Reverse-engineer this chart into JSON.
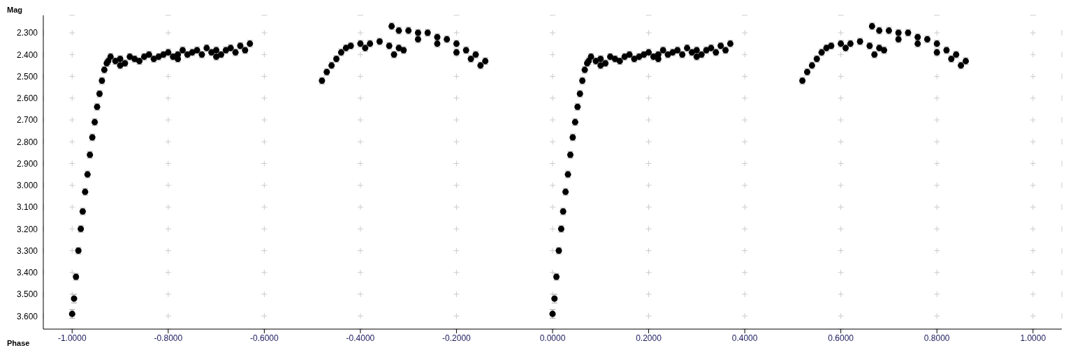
{
  "chart_data": {
    "type": "scatter",
    "xlabel": "Phase",
    "ylabel": "Mag",
    "xlim": [
      -1.06,
      1.06
    ],
    "ylim": [
      3.66,
      2.22
    ],
    "xticks": [
      {
        "value": -1,
        "label": "-1.0000"
      },
      {
        "value": -0.8,
        "label": "-0.8000"
      },
      {
        "value": -0.6,
        "label": "-0.6000"
      },
      {
        "value": -0.4,
        "label": "-0.4000"
      },
      {
        "value": -0.2,
        "label": "-0.2000"
      },
      {
        "value": 0,
        "label": "0.0000"
      },
      {
        "value": 0.2,
        "label": "0.2000"
      },
      {
        "value": 0.4,
        "label": "0.4000"
      },
      {
        "value": 0.6,
        "label": "0.6000"
      },
      {
        "value": 0.8,
        "label": "0.8000"
      },
      {
        "value": 1,
        "label": "1.0000"
      }
    ],
    "yticks": [
      {
        "value": 2.3,
        "label": "2.300"
      },
      {
        "value": 2.4,
        "label": "2.400"
      },
      {
        "value": 2.5,
        "label": "2.500"
      },
      {
        "value": 2.6,
        "label": "2.600"
      },
      {
        "value": 2.7,
        "label": "2.700"
      },
      {
        "value": 2.8,
        "label": "2.800"
      },
      {
        "value": 2.9,
        "label": "2.900"
      },
      {
        "value": 3.0,
        "label": "3.000"
      },
      {
        "value": 3.1,
        "label": "3.100"
      },
      {
        "value": 3.2,
        "label": "3.200"
      },
      {
        "value": 3.3,
        "label": "3.300"
      },
      {
        "value": 3.4,
        "label": "3.400"
      },
      {
        "value": 3.5,
        "label": "3.500"
      },
      {
        "value": 3.6,
        "label": "3.600"
      }
    ],
    "grid": true,
    "marker": "circle",
    "series": [
      {
        "color": "#000000",
        "x": [
          -1,
          -0.996,
          -0.992,
          -0.987,
          -0.982,
          -0.978,
          -0.973,
          -0.968,
          -0.963,
          -0.958,
          -0.953,
          -0.948,
          -0.943,
          -0.938,
          -0.933,
          -0.928,
          -0.925,
          -0.92,
          -0.91,
          -0.9,
          -0.9,
          -0.89,
          -0.88,
          -0.87,
          -0.86,
          -0.85,
          -0.84,
          -0.83,
          -0.82,
          -0.81,
          -0.8,
          -0.79,
          -0.78,
          -0.78,
          -0.77,
          -0.76,
          -0.75,
          -0.74,
          -0.73,
          -0.72,
          -0.71,
          -0.7,
          -0.7,
          -0.69,
          -0.68,
          -0.67,
          -0.66,
          -0.65,
          -0.64,
          -0.63,
          -0.48,
          -0.47,
          -0.46,
          -0.45,
          -0.44,
          -0.43,
          -0.42,
          -0.4,
          -0.39,
          -0.38,
          -0.36,
          -0.34,
          -0.33,
          -0.32,
          -0.31,
          -0.335,
          -0.32,
          -0.3,
          -0.28,
          -0.28,
          -0.26,
          -0.24,
          -0.24,
          -0.22,
          -0.2,
          -0.2,
          -0.18,
          -0.17,
          -0.16,
          -0.15,
          -0.14
        ],
        "values": [
          3.59,
          3.52,
          3.42,
          3.3,
          3.2,
          3.12,
          3.03,
          2.95,
          2.86,
          2.78,
          2.71,
          2.64,
          2.58,
          2.52,
          2.47,
          2.44,
          2.43,
          2.41,
          2.43,
          2.42,
          2.45,
          2.44,
          2.41,
          2.42,
          2.43,
          2.41,
          2.4,
          2.42,
          2.41,
          2.4,
          2.39,
          2.41,
          2.4,
          2.42,
          2.38,
          2.4,
          2.39,
          2.38,
          2.4,
          2.37,
          2.39,
          2.38,
          2.41,
          2.4,
          2.38,
          2.37,
          2.39,
          2.36,
          2.38,
          2.35,
          2.52,
          2.48,
          2.45,
          2.42,
          2.39,
          2.37,
          2.36,
          2.35,
          2.37,
          2.35,
          2.34,
          2.36,
          2.4,
          2.37,
          2.38,
          2.27,
          2.29,
          2.29,
          2.3,
          2.33,
          2.3,
          2.32,
          2.35,
          2.33,
          2.35,
          2.39,
          2.38,
          2.42,
          2.4,
          2.45,
          2.43
        ],
        "errors": [
          0.02,
          0.02,
          0.015,
          0.015,
          0.015,
          0.015,
          0.015,
          0.015,
          0.015,
          0.015,
          0.015,
          0.015,
          0.015,
          0.015,
          0.015,
          0.015,
          0.015,
          0.015,
          0.015,
          0.015,
          0.015,
          0.015,
          0.015,
          0.015,
          0.015,
          0.015,
          0.015,
          0.015,
          0.015,
          0.015,
          0.015,
          0.015,
          0.015,
          0.015,
          0.015,
          0.015,
          0.015,
          0.015,
          0.015,
          0.015,
          0.015,
          0.015,
          0.015,
          0.015,
          0.015,
          0.015,
          0.015,
          0.015,
          0.015,
          0.015,
          0.015,
          0.015,
          0.015,
          0.015,
          0.015,
          0.015,
          0.015,
          0.015,
          0.015,
          0.015,
          0.015,
          0.015,
          0.015,
          0.015,
          0.015,
          0.015,
          0.015,
          0.015,
          0.015,
          0.015,
          0.015,
          0.015,
          0.015,
          0.015,
          0.015,
          0.015,
          0.015,
          0.015,
          0.015,
          0.015,
          0.015
        ]
      },
      {
        "color": "#000000",
        "x": [
          0,
          0.004,
          0.008,
          0.013,
          0.018,
          0.022,
          0.027,
          0.032,
          0.037,
          0.042,
          0.047,
          0.052,
          0.057,
          0.062,
          0.067,
          0.072,
          0.075,
          0.08,
          0.09,
          0.1,
          0.1,
          0.11,
          0.12,
          0.13,
          0.14,
          0.15,
          0.16,
          0.17,
          0.18,
          0.19,
          0.2,
          0.21,
          0.22,
          0.22,
          0.23,
          0.24,
          0.25,
          0.26,
          0.27,
          0.28,
          0.29,
          0.3,
          0.3,
          0.31,
          0.32,
          0.33,
          0.34,
          0.35,
          0.36,
          0.37,
          0.52,
          0.53,
          0.54,
          0.55,
          0.56,
          0.57,
          0.58,
          0.6,
          0.61,
          0.62,
          0.64,
          0.66,
          0.67,
          0.68,
          0.69,
          0.665,
          0.68,
          0.7,
          0.72,
          0.72,
          0.74,
          0.76,
          0.76,
          0.78,
          0.8,
          0.8,
          0.82,
          0.83,
          0.84,
          0.85,
          0.86
        ],
        "values": [
          3.59,
          3.52,
          3.42,
          3.3,
          3.2,
          3.12,
          3.03,
          2.95,
          2.86,
          2.78,
          2.71,
          2.64,
          2.58,
          2.52,
          2.47,
          2.44,
          2.43,
          2.41,
          2.43,
          2.42,
          2.45,
          2.44,
          2.41,
          2.42,
          2.43,
          2.41,
          2.4,
          2.42,
          2.41,
          2.4,
          2.39,
          2.41,
          2.4,
          2.42,
          2.38,
          2.4,
          2.39,
          2.38,
          2.4,
          2.37,
          2.39,
          2.38,
          2.41,
          2.4,
          2.38,
          2.37,
          2.39,
          2.36,
          2.38,
          2.35,
          2.52,
          2.48,
          2.45,
          2.42,
          2.39,
          2.37,
          2.36,
          2.35,
          2.37,
          2.35,
          2.34,
          2.36,
          2.4,
          2.37,
          2.38,
          2.27,
          2.29,
          2.29,
          2.3,
          2.33,
          2.3,
          2.32,
          2.35,
          2.33,
          2.35,
          2.39,
          2.38,
          2.42,
          2.4,
          2.45,
          2.43
        ],
        "errors": [
          0.02,
          0.02,
          0.015,
          0.015,
          0.015,
          0.015,
          0.015,
          0.015,
          0.015,
          0.015,
          0.015,
          0.015,
          0.015,
          0.015,
          0.015,
          0.015,
          0.015,
          0.015,
          0.015,
          0.015,
          0.015,
          0.015,
          0.015,
          0.015,
          0.015,
          0.015,
          0.015,
          0.015,
          0.015,
          0.015,
          0.015,
          0.015,
          0.015,
          0.015,
          0.015,
          0.015,
          0.015,
          0.015,
          0.015,
          0.015,
          0.015,
          0.015,
          0.015,
          0.015,
          0.015,
          0.015,
          0.015,
          0.015,
          0.015,
          0.015,
          0.015,
          0.015,
          0.015,
          0.015,
          0.015,
          0.015,
          0.015,
          0.015,
          0.015,
          0.015,
          0.015,
          0.015,
          0.015,
          0.015,
          0.015,
          0.015,
          0.015,
          0.015,
          0.015,
          0.015,
          0.015,
          0.015,
          0.015,
          0.015,
          0.015,
          0.015,
          0.015,
          0.015,
          0.015,
          0.015,
          0.015
        ]
      }
    ]
  }
}
